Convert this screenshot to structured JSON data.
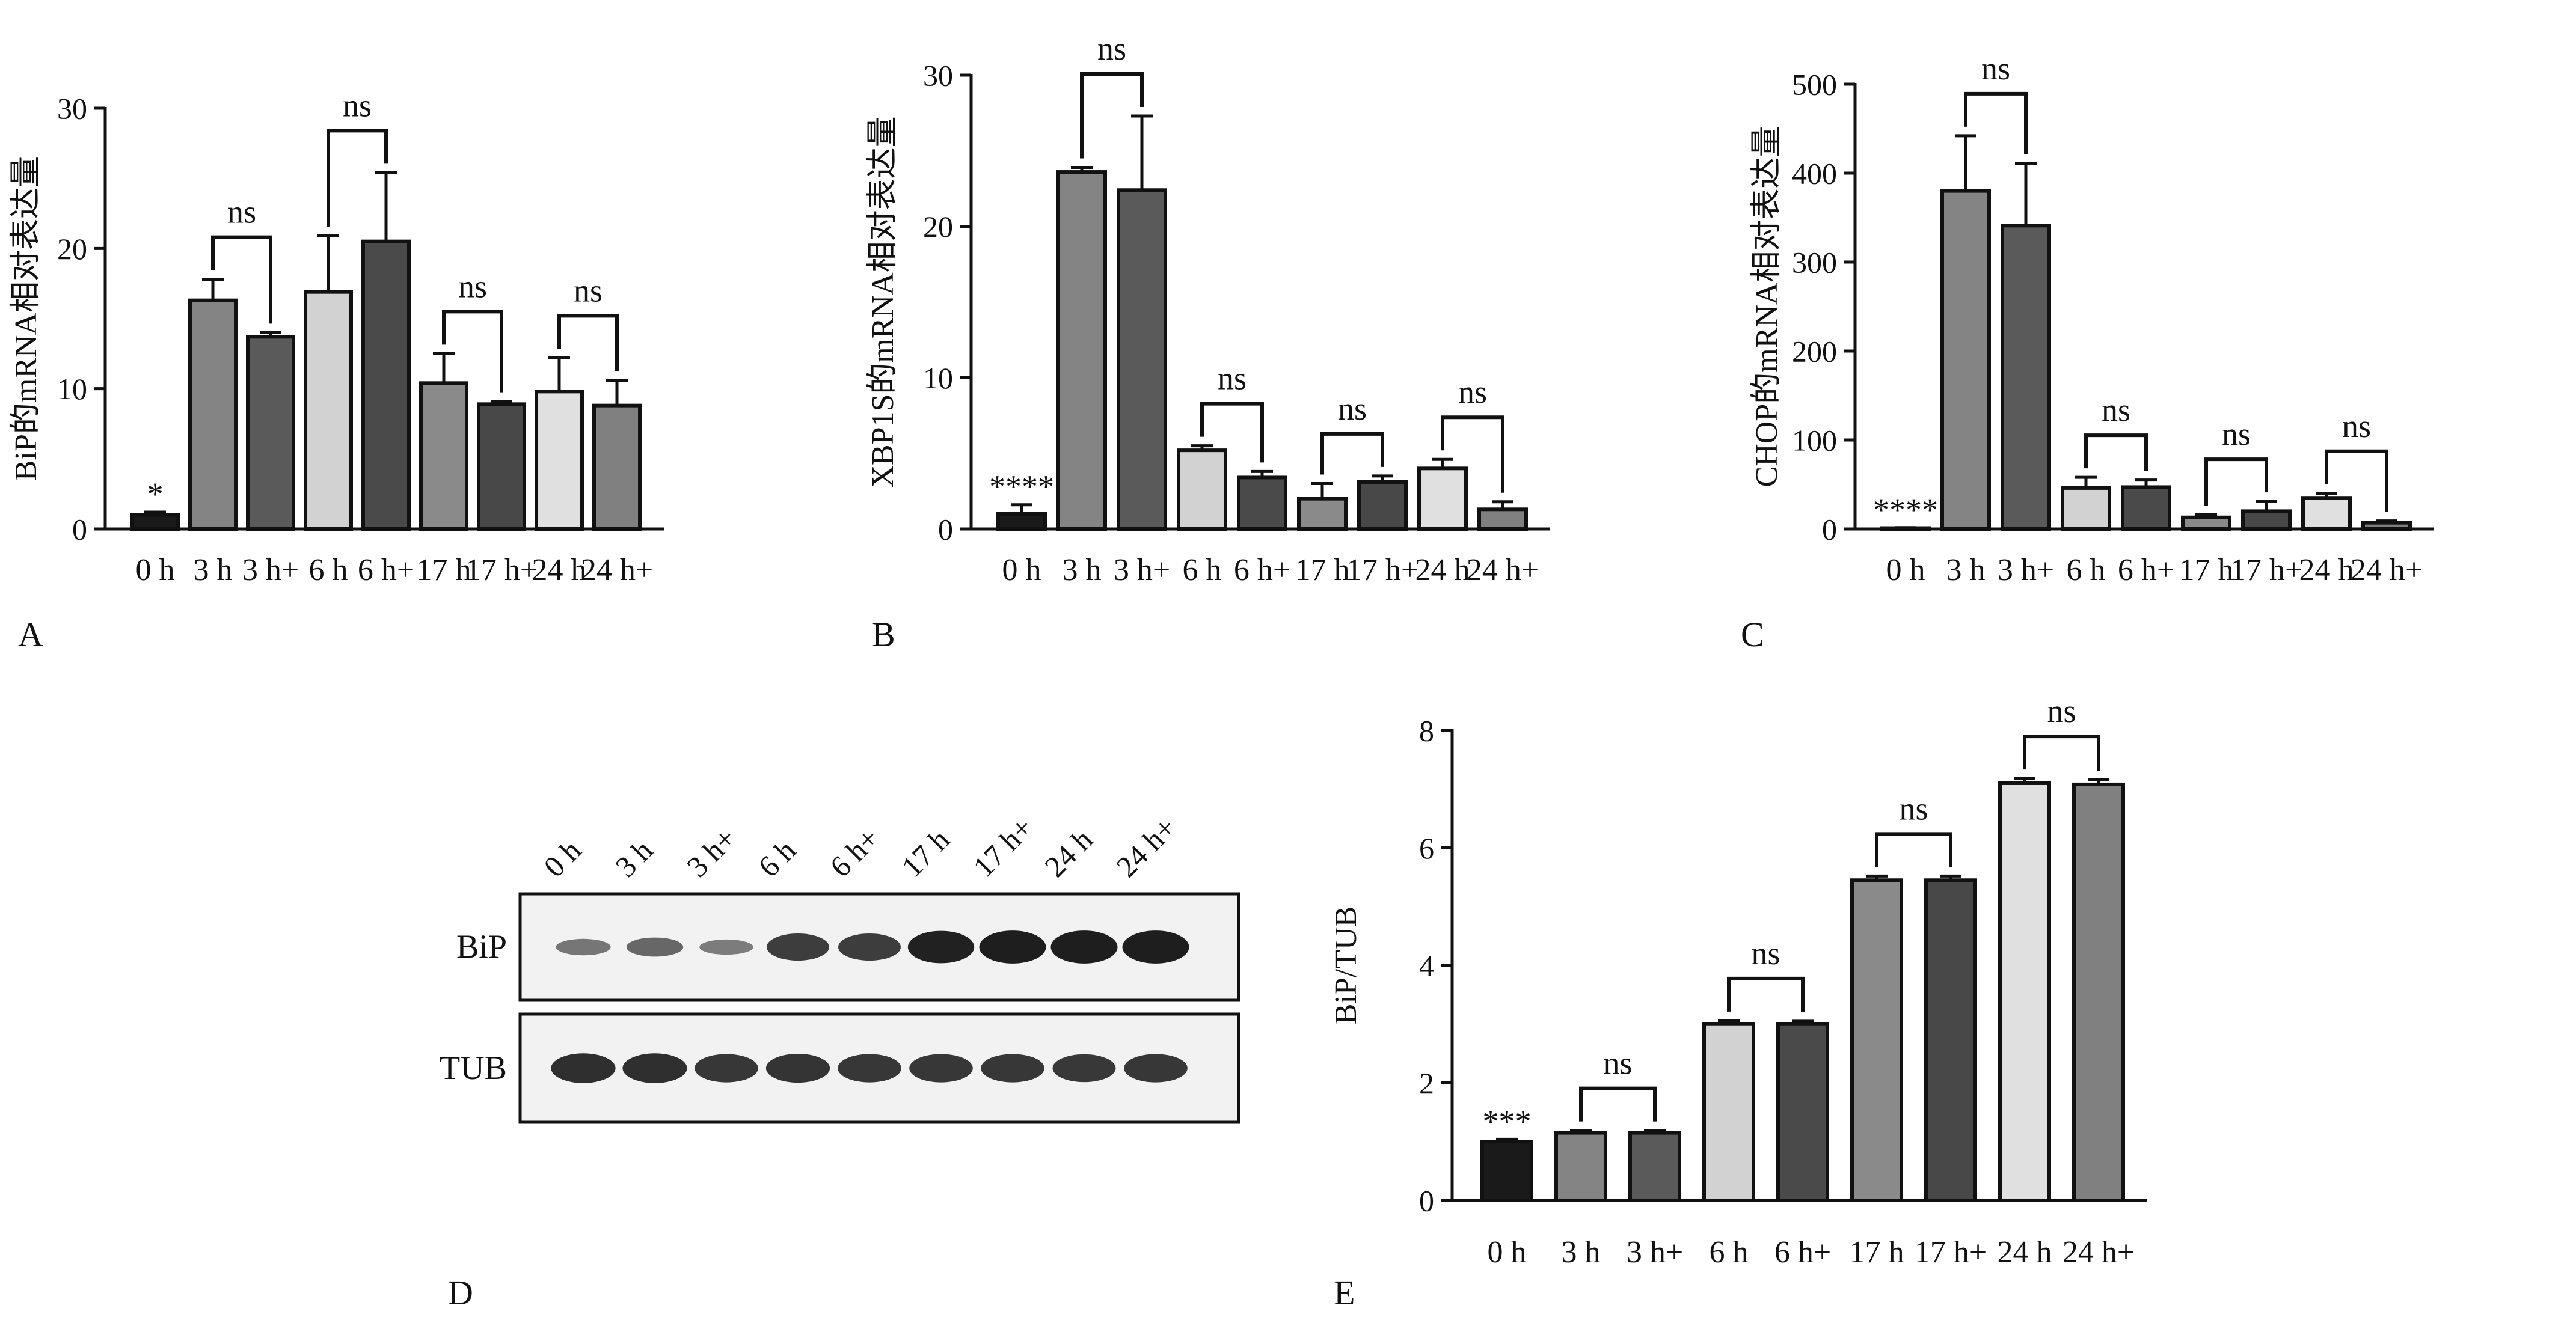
{
  "panel_letters": [
    "A",
    "B",
    "C",
    "D",
    "E"
  ],
  "colors": {
    "axis": "#111111",
    "bar_outline": "#111111",
    "error_bar": "#111111",
    "bracket": "#111111",
    "blot_box": "#111111",
    "blot_background": "#f2f2f2",
    "blot_band": "#1a1a1a"
  },
  "chart_data": [
    {
      "panel": "A",
      "type": "bar",
      "xlabel": "",
      "ylabel": "BiP的mRNA相对表达量",
      "ylim": [
        0,
        30
      ],
      "yticks": [
        "0",
        "10",
        "20",
        "30"
      ],
      "categories": [
        "0 h",
        "3 h",
        "3 h+",
        "6 h",
        "6 h+",
        "17 h",
        "17 h+",
        "24 h",
        "24 h+"
      ],
      "values": [
        1.0,
        16.3,
        13.7,
        16.9,
        20.5,
        10.4,
        8.9,
        9.8,
        8.8
      ],
      "errors": [
        0.2,
        1.5,
        0.3,
        4.0,
        4.9,
        2.1,
        0.2,
        2.4,
        1.8
      ],
      "bar_colors": [
        "#1a1a1a",
        "#848484",
        "#5a5a5a",
        "#d2d2d2",
        "#4a4a4a",
        "#8a8a8a",
        "#484848",
        "#e0e0e0",
        "#808080"
      ],
      "star_annotations": [
        {
          "category": "0 h",
          "text": "*"
        }
      ],
      "comparisons": [
        {
          "from": "3 h",
          "to": "3 h+",
          "label": "ns"
        },
        {
          "from": "6 h",
          "to": "6 h+",
          "label": "ns"
        },
        {
          "from": "17 h",
          "to": "17 h+",
          "label": "ns"
        },
        {
          "from": "24 h",
          "to": "24 h+",
          "label": "ns"
        }
      ]
    },
    {
      "panel": "B",
      "type": "bar",
      "xlabel": "",
      "ylabel": "XBP1S的mRNA相对表达量",
      "ylim": [
        0,
        30
      ],
      "yticks": [
        "0",
        "10",
        "20",
        "30"
      ],
      "categories": [
        "0 h",
        "3 h",
        "3 h+",
        "6 h",
        "6 h+",
        "17 h",
        "17 h+",
        "24 h",
        "24 h+"
      ],
      "values": [
        1.0,
        23.6,
        22.4,
        5.2,
        3.4,
        2.0,
        3.1,
        4.0,
        1.3
      ],
      "errors": [
        0.6,
        0.3,
        4.9,
        0.3,
        0.4,
        1.0,
        0.4,
        0.6,
        0.5
      ],
      "bar_colors": [
        "#1a1a1a",
        "#848484",
        "#5a5a5a",
        "#d2d2d2",
        "#4a4a4a",
        "#8a8a8a",
        "#484848",
        "#e0e0e0",
        "#808080"
      ],
      "star_annotations": [
        {
          "category": "0 h",
          "text": "****"
        }
      ],
      "comparisons": [
        {
          "from": "3 h",
          "to": "3 h+",
          "label": "ns"
        },
        {
          "from": "6 h",
          "to": "6 h+",
          "label": "ns"
        },
        {
          "from": "17 h",
          "to": "17 h+",
          "label": "ns"
        },
        {
          "from": "24 h",
          "to": "24 h+",
          "label": "ns"
        }
      ]
    },
    {
      "panel": "C",
      "type": "bar",
      "xlabel": "",
      "ylabel": "CHOP的mRNA相对表达量",
      "ylim": [
        0,
        500
      ],
      "yticks": [
        "0",
        "100",
        "200",
        "300",
        "400",
        "500"
      ],
      "categories": [
        "0 h",
        "3 h",
        "3 h+",
        "6 h",
        "6 h+",
        "17 h",
        "17 h+",
        "24 h",
        "24 h+"
      ],
      "values": [
        1.0,
        380,
        341,
        46,
        47,
        13,
        20,
        35,
        7
      ],
      "errors": [
        0.5,
        62,
        70,
        12,
        8,
        3,
        11,
        5,
        2
      ],
      "bar_colors": [
        "#1a1a1a",
        "#848484",
        "#5a5a5a",
        "#d2d2d2",
        "#4a4a4a",
        "#8a8a8a",
        "#484848",
        "#e0e0e0",
        "#808080"
      ],
      "star_annotations": [
        {
          "category": "0 h",
          "text": "****"
        }
      ],
      "comparisons": [
        {
          "from": "3 h",
          "to": "3 h+",
          "label": "ns"
        },
        {
          "from": "6 h",
          "to": "6 h+",
          "label": "ns"
        },
        {
          "from": "17 h",
          "to": "17 h+",
          "label": "ns"
        },
        {
          "from": "24 h",
          "to": "24 h+",
          "label": "ns"
        }
      ]
    },
    {
      "panel": "E",
      "type": "bar",
      "xlabel": "",
      "ylabel": "BiP/TUB",
      "ylim": [
        0,
        8
      ],
      "yticks": [
        "0",
        "2",
        "4",
        "6",
        "8"
      ],
      "categories": [
        "0 h",
        "3 h",
        "3 h+",
        "6 h",
        "6 h+",
        "17 h",
        "17 h+",
        "24 h",
        "24 h+"
      ],
      "values": [
        1.0,
        1.15,
        1.15,
        3.0,
        3.0,
        5.45,
        5.45,
        7.1,
        7.08
      ],
      "errors": [
        0.04,
        0.04,
        0.04,
        0.06,
        0.05,
        0.07,
        0.07,
        0.08,
        0.08
      ],
      "bar_colors": [
        "#1a1a1a",
        "#848484",
        "#5a5a5a",
        "#d2d2d2",
        "#4a4a4a",
        "#8a8a8a",
        "#484848",
        "#e0e0e0",
        "#808080"
      ],
      "star_annotations": [
        {
          "category": "0 h",
          "text": "***"
        }
      ],
      "comparisons": [
        {
          "from": "3 h",
          "to": "3 h+",
          "label": "ns"
        },
        {
          "from": "6 h",
          "to": "6 h+",
          "label": "ns"
        },
        {
          "from": "17 h",
          "to": "17 h+",
          "label": "ns"
        },
        {
          "from": "24 h",
          "to": "24 h+",
          "label": "ns"
        }
      ]
    }
  ],
  "western_blot": {
    "panel": "D",
    "lanes": [
      "0 h",
      "3 h",
      "3 h+",
      "6 h",
      "6 h+",
      "17 h",
      "17 h+",
      "24 h",
      "24 h+"
    ],
    "rows": [
      {
        "label": "BiP",
        "band_intensity": [
          0.35,
          0.45,
          0.3,
          0.75,
          0.75,
          0.95,
          0.97,
          0.97,
          0.97
        ]
      },
      {
        "label": "TUB",
        "band_intensity": [
          0.85,
          0.85,
          0.8,
          0.82,
          0.8,
          0.8,
          0.8,
          0.78,
          0.8
        ]
      }
    ]
  }
}
